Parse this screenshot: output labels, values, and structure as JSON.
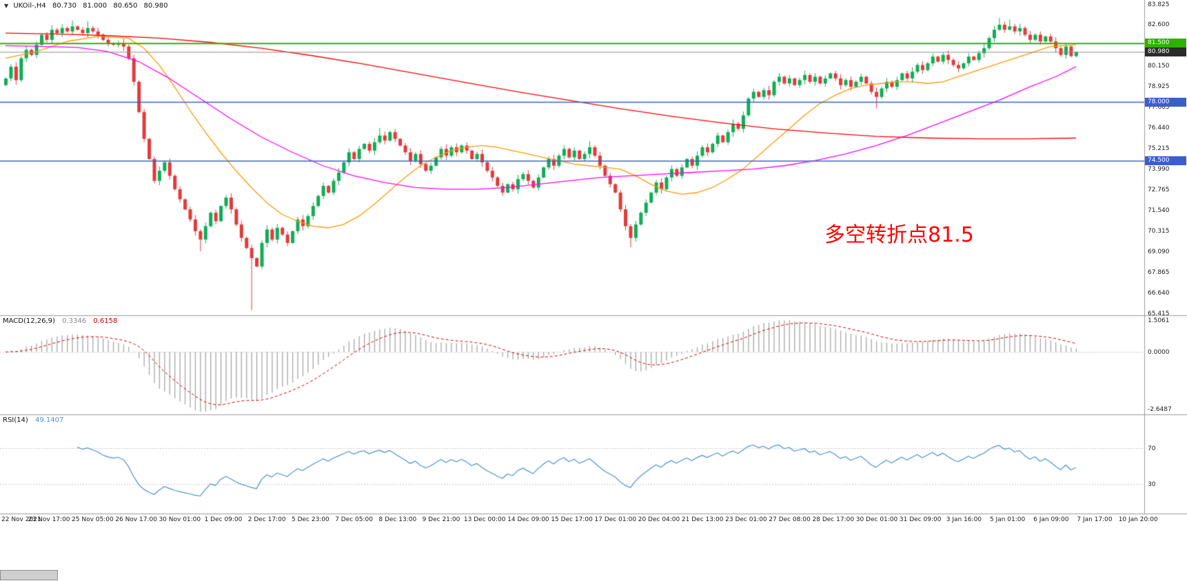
{
  "header": {
    "symbol": "UKOil-,H4",
    "open": "80.730",
    "high": "81.000",
    "low": "80.650",
    "close": "80.980"
  },
  "main_chart": {
    "annotation": {
      "text": "多空转折点81.5",
      "color": "#ff0000"
    }
  },
  "indicators": {
    "macd": {
      "name": "MACD(12,26,9)",
      "value_main": "0.3346",
      "value_signal": "0.6158",
      "axis": [
        "1.5061",
        "0.0000",
        "-2.6487"
      ],
      "range": [
        -2.6487,
        1.5061
      ],
      "params": [
        12,
        26,
        9
      ]
    },
    "rsi": {
      "name": "RSI(14)",
      "value": "49.1407",
      "levels": [
        70,
        30
      ],
      "level_labels": [
        "70",
        "30"
      ],
      "period": 14
    }
  },
  "chart_data": {
    "type": "candlestick",
    "symbol": "UKOil",
    "timeframe": "H4",
    "title": "UKOil-,H4 80.730 81.000 80.650 80.980",
    "y_range": [
      65.415,
      83.825
    ],
    "y_ticks": [
      "83.825",
      "82.600",
      "81.375",
      "80.150",
      "78.925",
      "77.665",
      "76.440",
      "75.215",
      "73.990",
      "72.765",
      "71.540",
      "70.315",
      "69.090",
      "67.865",
      "66.640",
      "65.415"
    ],
    "x_labels": [
      "22 Nov 2021",
      "23 Nov 17:00",
      "25 Nov 05:00",
      "26 Nov 17:00",
      "30 Nov 01:00",
      "1 Dec 09:00",
      "2 Dec 17:00",
      "5 Dec 23:00",
      "7 Dec 05:00",
      "8 Dec 13:00",
      "9 Dec 21:00",
      "13 Dec 00:00",
      "14 Dec 09:00",
      "15 Dec 17:00",
      "17 Dec 01:00",
      "20 Dec 04:00",
      "21 Dec 13:00",
      "23 Dec 01:00",
      "27 Dec 08:00",
      "28 Dec 17:00",
      "30 Dec 01:00",
      "31 Dec 09:00",
      "3 Jan 16:00",
      "5 Jan 01:00",
      "6 Jan 09:00",
      "7 Jan 17:00",
      "10 Jan 20:00"
    ],
    "first_open": 79.0,
    "closes": [
      79.4,
      80.1,
      79.3,
      80.6,
      81.1,
      80.8,
      81.4,
      82.0,
      81.7,
      82.3,
      82.1,
      82.4,
      82.2,
      82.5,
      82.3,
      82.1,
      82.4,
      82.2,
      82.0,
      81.7,
      81.5,
      81.4,
      81.5,
      81.3,
      80.6,
      79.2,
      77.4,
      75.8,
      74.6,
      73.3,
      73.9,
      74.4,
      73.6,
      72.8,
      72.2,
      71.6,
      71.0,
      70.3,
      69.8,
      70.6,
      71.4,
      70.9,
      71.8,
      72.3,
      71.6,
      70.7,
      69.9,
      69.3,
      68.7,
      68.2,
      69.6,
      70.4,
      69.8,
      70.5,
      70.1,
      69.6,
      70.3,
      71.0,
      70.6,
      71.2,
      71.8,
      72.4,
      73.0,
      72.6,
      73.3,
      73.8,
      74.4,
      75.0,
      74.6,
      75.2,
      75.5,
      75.1,
      75.6,
      76.0,
      75.7,
      76.2,
      75.8,
      75.4,
      75.0,
      74.5,
      74.9,
      74.3,
      73.9,
      74.2,
      74.7,
      75.2,
      74.8,
      75.3,
      75.0,
      75.4,
      75.1,
      74.6,
      74.9,
      74.4,
      73.9,
      73.5,
      73.0,
      72.6,
      73.1,
      72.8,
      73.4,
      73.7,
      73.3,
      72.9,
      73.5,
      74.1,
      74.6,
      74.2,
      74.8,
      75.2,
      74.7,
      75.1,
      74.6,
      74.9,
      75.3,
      74.8,
      74.2,
      73.6,
      73.1,
      72.6,
      71.6,
      70.6,
      69.9,
      70.7,
      71.4,
      72.0,
      72.6,
      73.2,
      72.8,
      73.5,
      74.0,
      73.6,
      74.1,
      74.6,
      74.2,
      74.8,
      75.3,
      75.0,
      75.5,
      76.0,
      75.6,
      76.2,
      76.7,
      76.4,
      77.2,
      78.2,
      78.6,
      78.3,
      78.7,
      78.4,
      79.2,
      79.5,
      79.1,
      79.4,
      79.0,
      79.3,
      79.6,
      79.2,
      79.5,
      79.1,
      79.4,
      79.7,
      79.4,
      79.0,
      79.3,
      78.9,
      79.2,
      79.5,
      79.1,
      78.6,
      78.3,
      78.8,
      79.2,
      78.9,
      79.3,
      79.7,
      79.4,
      79.8,
      80.2,
      79.9,
      80.3,
      80.7,
      80.4,
      80.8,
      80.5,
      80.2,
      80.0,
      80.3,
      80.7,
      80.5,
      80.9,
      81.2,
      81.8,
      82.3,
      82.6,
      82.3,
      82.5,
      82.2,
      82.4,
      82.0,
      81.7,
      82.0,
      81.6,
      81.9,
      81.6,
      81.2,
      80.8,
      81.3,
      80.73,
      80.98
    ],
    "wick_overrides": {
      "13": {
        "high": 82.85
      },
      "16": {
        "high": 82.8
      },
      "38": {
        "low": 69.1
      },
      "48": {
        "low": 65.6
      },
      "73": {
        "high": 76.45
      },
      "114": {
        "high": 75.65
      },
      "122": {
        "low": 69.35
      },
      "170": {
        "low": 77.62
      },
      "194": {
        "high": 83.0
      },
      "196": {
        "high": 82.9
      },
      "209": {
        "high": 81.0,
        "low": 80.65
      }
    },
    "moving_averages": [
      {
        "name": "ma-fast-orange",
        "color": "#ff9900",
        "points": [
          [
            0,
            80.6
          ],
          [
            6,
            81.0
          ],
          [
            12,
            81.6
          ],
          [
            18,
            81.9
          ],
          [
            24,
            81.8
          ],
          [
            27,
            81.2
          ],
          [
            30,
            80.2
          ],
          [
            33,
            78.9
          ],
          [
            36,
            77.5
          ],
          [
            39,
            76.2
          ],
          [
            42,
            75.0
          ],
          [
            45,
            73.9
          ],
          [
            48,
            72.9
          ],
          [
            51,
            72.0
          ],
          [
            54,
            71.3
          ],
          [
            57,
            70.9
          ],
          [
            60,
            70.6
          ],
          [
            63,
            70.5
          ],
          [
            66,
            70.7
          ],
          [
            69,
            71.2
          ],
          [
            72,
            71.9
          ],
          [
            75,
            72.7
          ],
          [
            78,
            73.5
          ],
          [
            81,
            74.2
          ],
          [
            84,
            74.7
          ],
          [
            87,
            75.1
          ],
          [
            90,
            75.3
          ],
          [
            93,
            75.4
          ],
          [
            96,
            75.3
          ],
          [
            99,
            75.1
          ],
          [
            102,
            74.9
          ],
          [
            105,
            74.7
          ],
          [
            108,
            74.5
          ],
          [
            111,
            74.3
          ],
          [
            114,
            74.2
          ],
          [
            117,
            74.1
          ],
          [
            120,
            74.0
          ],
          [
            123,
            73.6
          ],
          [
            126,
            73.1
          ],
          [
            129,
            72.7
          ],
          [
            132,
            72.5
          ],
          [
            135,
            72.6
          ],
          [
            138,
            72.9
          ],
          [
            141,
            73.4
          ],
          [
            144,
            74.0
          ],
          [
            147,
            74.8
          ],
          [
            150,
            75.6
          ],
          [
            153,
            76.4
          ],
          [
            156,
            77.2
          ],
          [
            159,
            77.9
          ],
          [
            162,
            78.4
          ],
          [
            165,
            78.8
          ],
          [
            168,
            79.0
          ],
          [
            171,
            79.1
          ],
          [
            174,
            79.2
          ],
          [
            177,
            79.2
          ],
          [
            180,
            79.1
          ],
          [
            183,
            79.2
          ],
          [
            186,
            79.5
          ],
          [
            189,
            79.8
          ],
          [
            192,
            80.1
          ],
          [
            196,
            80.5
          ],
          [
            200,
            80.9
          ],
          [
            204,
            81.3
          ],
          [
            209,
            81.4
          ]
        ]
      },
      {
        "name": "ma-mid-magenta",
        "color": "#ff00ff",
        "points": [
          [
            0,
            81.35
          ],
          [
            8,
            81.3
          ],
          [
            14,
            81.25
          ],
          [
            20,
            81.0
          ],
          [
            26,
            80.4
          ],
          [
            32,
            79.4
          ],
          [
            38,
            78.2
          ],
          [
            44,
            77.0
          ],
          [
            50,
            75.9
          ],
          [
            56,
            75.0
          ],
          [
            62,
            74.2
          ],
          [
            68,
            73.6
          ],
          [
            74,
            73.2
          ],
          [
            80,
            72.9
          ],
          [
            86,
            72.8
          ],
          [
            92,
            72.8
          ],
          [
            98,
            72.9
          ],
          [
            104,
            73.1
          ],
          [
            110,
            73.3
          ],
          [
            116,
            73.5
          ],
          [
            122,
            73.6
          ],
          [
            128,
            73.7
          ],
          [
            134,
            73.8
          ],
          [
            140,
            73.9
          ],
          [
            146,
            74.0
          ],
          [
            152,
            74.2
          ],
          [
            158,
            74.5
          ],
          [
            164,
            74.9
          ],
          [
            170,
            75.4
          ],
          [
            176,
            76.0
          ],
          [
            182,
            76.7
          ],
          [
            188,
            77.4
          ],
          [
            194,
            78.1
          ],
          [
            200,
            78.9
          ],
          [
            205,
            79.5
          ],
          [
            209,
            80.1
          ]
        ]
      },
      {
        "name": "ma-slow-red",
        "color": "#ff0000",
        "points": [
          [
            0,
            82.1
          ],
          [
            10,
            82.05
          ],
          [
            20,
            81.95
          ],
          [
            30,
            81.8
          ],
          [
            40,
            81.55
          ],
          [
            50,
            81.2
          ],
          [
            60,
            80.75
          ],
          [
            70,
            80.25
          ],
          [
            80,
            79.7
          ],
          [
            90,
            79.15
          ],
          [
            100,
            78.6
          ],
          [
            110,
            78.1
          ],
          [
            120,
            77.6
          ],
          [
            130,
            77.15
          ],
          [
            140,
            76.75
          ],
          [
            150,
            76.4
          ],
          [
            160,
            76.15
          ],
          [
            170,
            75.95
          ],
          [
            180,
            75.85
          ],
          [
            190,
            75.8
          ],
          [
            200,
            75.8
          ],
          [
            209,
            75.85
          ]
        ]
      }
    ],
    "h_lines": [
      {
        "price": 81.5,
        "label": "81.500",
        "color": "#2DB200",
        "width": 2
      },
      {
        "price": 78.0,
        "label": "78.000",
        "color": "#3A5FCD",
        "width": 1.5
      },
      {
        "price": 74.5,
        "label": "74.500",
        "color": "#3A5FCD",
        "width": 1.5
      }
    ],
    "current_price": 80.98,
    "current_price_tag": {
      "label": "80.980",
      "bg": "#2b2b2b"
    }
  },
  "colors": {
    "bull": "#0fae54",
    "bear": "#e23b3b",
    "macd_hist": "#a6a6a6",
    "macd_signal": "#d40000",
    "rsi_line": "#4a90d2",
    "separator": "#9a9a9a",
    "current_price_line": "#8c8c8c",
    "dotted_level": "#c8c8c8"
  }
}
